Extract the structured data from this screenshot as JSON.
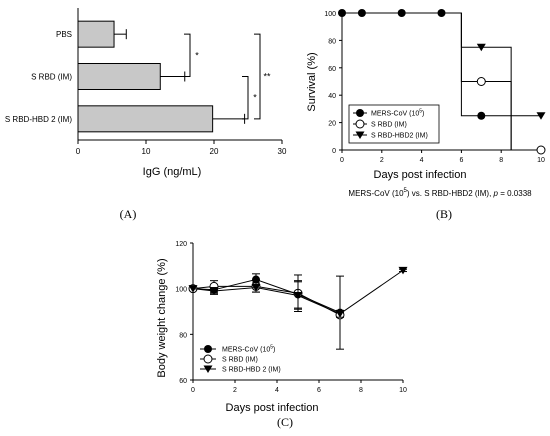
{
  "panels": {
    "a": "(A)",
    "b": "(B)",
    "c": "(C)"
  },
  "chart_data": [
    {
      "type": "bar",
      "orientation": "horizontal",
      "categories": [
        "PBS",
        "S RBD (IM)",
        "S RBD-HBD 2 (IM)"
      ],
      "values": [
        5.3,
        12.1,
        19.8
      ],
      "errors": [
        1.8,
        3.6,
        4.7
      ],
      "xlabel": "IgG (ng/mL)",
      "ylabel": "",
      "xlim": [
        0,
        30
      ],
      "xticks": [
        "0",
        "10",
        "20",
        "30"
      ],
      "bar_color": "#c8c8c8",
      "significance": [
        {
          "label": "*",
          "between": [
            "PBS",
            "S RBD (IM)"
          ]
        },
        {
          "label": "*",
          "between": [
            "S RBD (IM)",
            "S RBD-HBD 2 (IM)"
          ]
        },
        {
          "label": "**",
          "between": [
            "PBS",
            "S RBD-HBD 2 (IM)"
          ]
        }
      ],
      "grid": false
    },
    {
      "type": "line",
      "step": true,
      "xlabel": "Days post infection",
      "ylabel": "Survival (%)",
      "xlim": [
        0,
        10
      ],
      "ylim": [
        0,
        100
      ],
      "xticks": [
        "0",
        "2",
        "4",
        "6",
        "8",
        "10"
      ],
      "yticks": [
        "0",
        "20",
        "40",
        "60",
        "80",
        "100"
      ],
      "legend": "bottom-left",
      "grid": false,
      "series": [
        {
          "name": "MERS-CoV (10",
          "name_sup": "5",
          "name_tail": ")",
          "marker": "filled-circle",
          "x": [
            0,
            1,
            3,
            5,
            7
          ],
          "y": [
            100,
            100,
            100,
            100,
            25
          ],
          "end": [
            8.5,
            0
          ]
        },
        {
          "name": "S RBD (IM)",
          "marker": "open-circle",
          "x": [
            7,
            10
          ],
          "y": [
            50,
            0
          ],
          "end": [
            8.5,
            0
          ]
        },
        {
          "name": "S RBD-HBD2 (IM)",
          "marker": "filled-triangle",
          "x": [
            7,
            10
          ],
          "y": [
            75,
            25
          ],
          "end": [
            8.5,
            25
          ]
        }
      ],
      "annotation": {
        "pre": "MERS-CoV (10",
        "sup": "5",
        "post": ") vs. S RBD-HBD2 (IM), ",
        "p": "p",
        "tail": " = 0.0338"
      }
    },
    {
      "type": "line",
      "xlabel": "Days post infection",
      "ylabel": "Body weight change (%)",
      "xlim": [
        0,
        10
      ],
      "ylim": [
        60,
        120
      ],
      "xticks": [
        "0",
        "2",
        "4",
        "6",
        "8",
        "10"
      ],
      "yticks": [
        "60",
        "80",
        "100",
        "120"
      ],
      "legend": "bottom-left",
      "grid": false,
      "series": [
        {
          "name": "MERS-CoV (10",
          "name_sup": "5",
          "name_tail": ")",
          "marker": "filled-circle",
          "x": [
            0,
            1,
            3,
            5,
            7
          ],
          "y": [
            100,
            99.5,
            104,
            97.5,
            89.5
          ],
          "err": [
            0,
            1.5,
            2.5,
            6,
            16
          ]
        },
        {
          "name": "S RBD (IM)",
          "marker": "open-circle",
          "x": [
            0,
            1,
            3,
            5,
            7
          ],
          "y": [
            100,
            101,
            101,
            98,
            88.5
          ],
          "err": [
            0,
            2.5,
            2.5,
            8,
            1
          ]
        },
        {
          "name": "S RBD-HBD 2 (IM)",
          "marker": "filled-triangle",
          "x": [
            0,
            1,
            3,
            5,
            7,
            10
          ],
          "y": [
            100,
            99,
            100.5,
            97,
            89,
            108
          ],
          "err": [
            0,
            1.5,
            2,
            6,
            1.5,
            0.5
          ]
        }
      ]
    }
  ]
}
